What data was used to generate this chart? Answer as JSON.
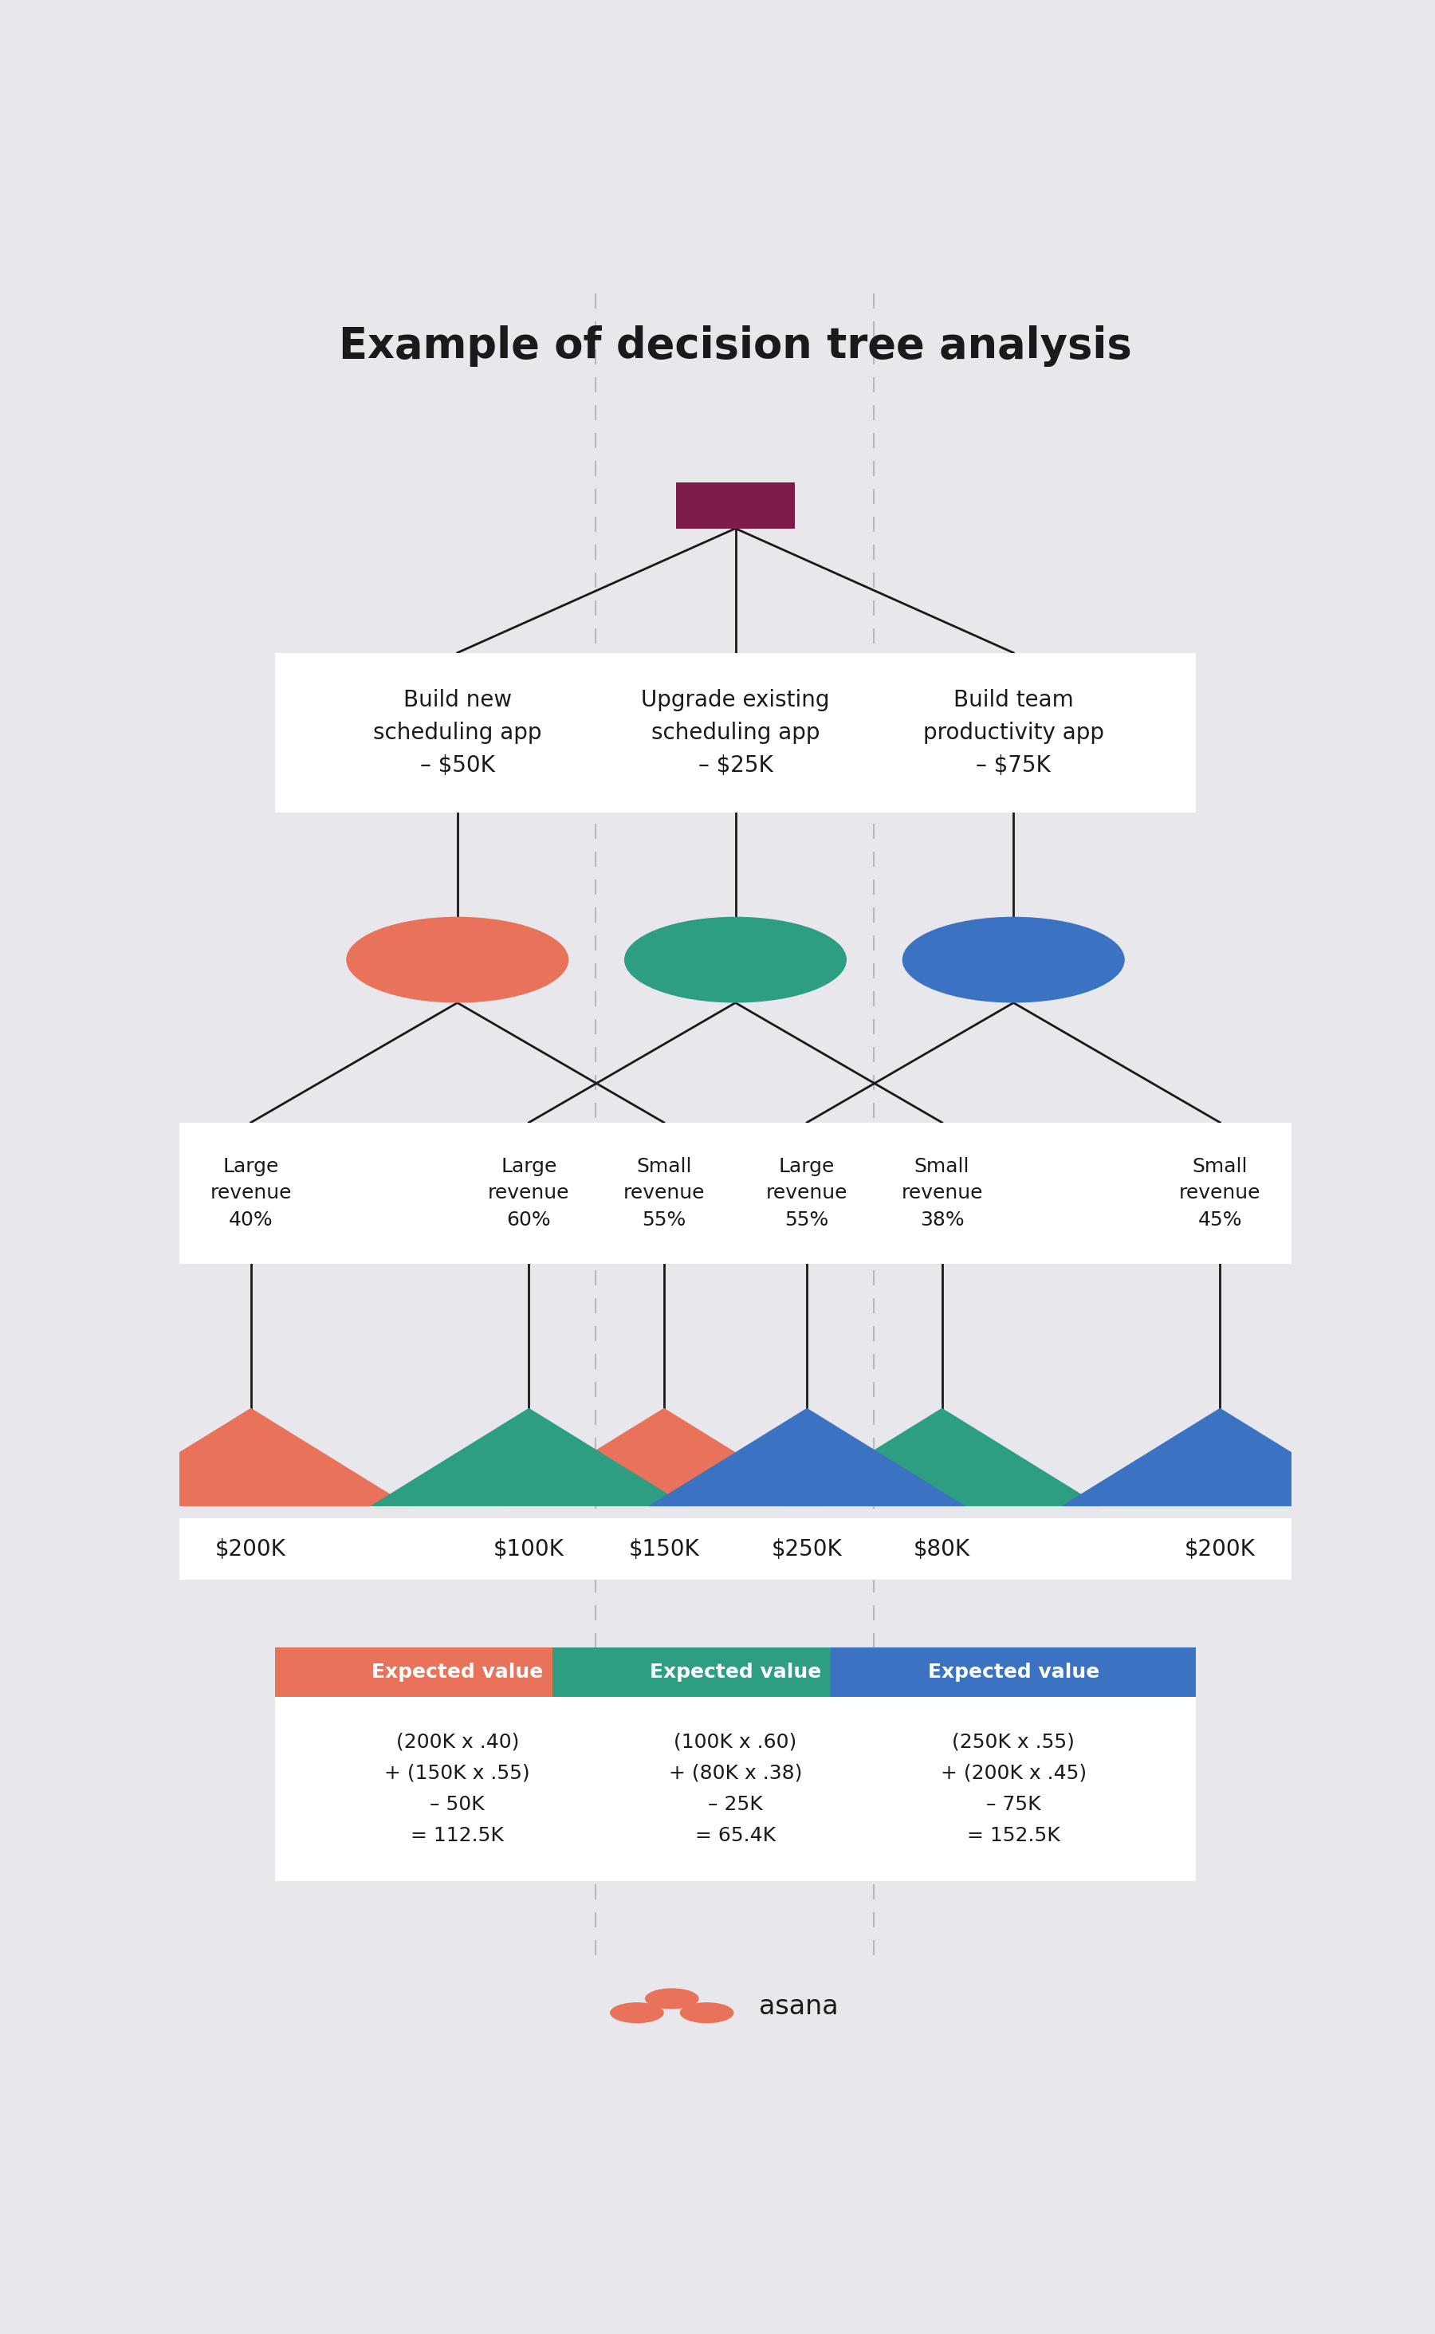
{
  "title": "Example of decision tree analysis",
  "bg_color": "#e8e8ec",
  "title_color": "#1a1a1a",
  "title_fontsize": 38,
  "root_color": "#7d1c4a",
  "col_divider_color": "#b8b8c0",
  "branches": [
    {
      "label": "Build new\nscheduling app\n– $50K",
      "circle_color": "#e8735a",
      "left_label": "Large\nrevenue\n40%",
      "right_label": "Small\nrevenue\n55%",
      "left_value": "$200K",
      "right_value": "$150K",
      "ev_color": "#e8735a",
      "ev_label": "Expected value",
      "ev_formula": "(200K x .40)\n+ (150K x .55)\n– 50K\n= 112.5K"
    },
    {
      "label": "Upgrade existing\nscheduling app\n– $25K",
      "circle_color": "#2e9e82",
      "left_label": "Large\nrevenue\n60%",
      "right_label": "Small\nrevenue\n38%",
      "left_value": "$100K",
      "right_value": "$80K",
      "ev_color": "#2e9e82",
      "ev_label": "Expected value",
      "ev_formula": "(100K x .60)\n+ (80K x .38)\n– 25K\n= 65.4K"
    },
    {
      "label": "Build team\nproductivity app\n– $75K",
      "circle_color": "#3b73c2",
      "left_label": "Large\nrevenue\n55%",
      "right_label": "Small\nrevenue\n45%",
      "left_value": "$250K",
      "right_value": "$200K",
      "ev_color": "#3b73c2",
      "ev_label": "Expected value",
      "ev_formula": "(250K x .55)\n+ (200K x .45)\n– 75K\n= 152.5K"
    }
  ],
  "asana_logo_color": "#e8735a",
  "asana_text_color": "#1a1a1a",
  "line_color": "#1a1a1a",
  "box_color": "#ffffff"
}
